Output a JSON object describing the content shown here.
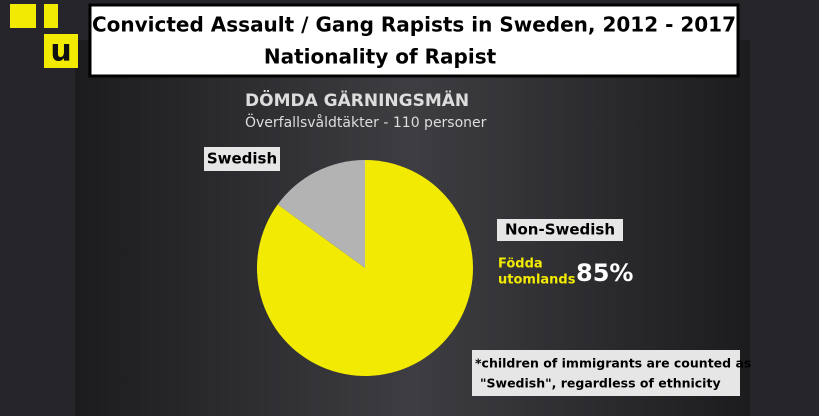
{
  "chart_data": {
    "type": "pie",
    "title": "Convicted Assault / Gang Rapists in Sweden, 2012 - 2017",
    "subtitle": "Nationality of Rapist",
    "logo": "u",
    "inner_title": "DÖMDA GÄRNINGSMÄN",
    "inner_subtitle": "Överfallsvåldtäkter - 110 personer",
    "categories": [
      "Swedish",
      "Non-Swedish"
    ],
    "values": [
      15,
      85
    ],
    "value_labels": [
      null,
      "85%"
    ],
    "colors": [
      "#b3b3b3",
      "#f2ea00"
    ],
    "slice_caption": [
      "Födda",
      "utomlands"
    ],
    "footnote": [
      "*children of immigrants are counted as",
      "\"Swedish\", regardless of ethnicity"
    ]
  }
}
